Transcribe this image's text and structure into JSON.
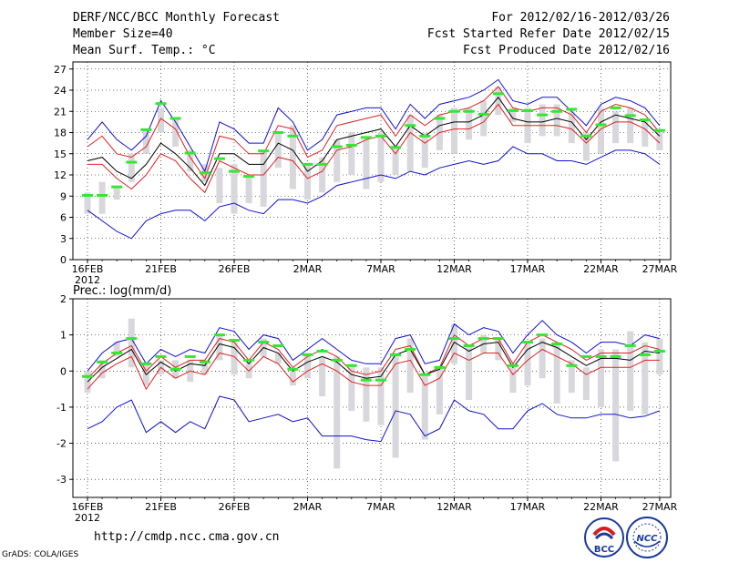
{
  "header": {
    "title": "DERF/NCC/BCC Monthly Forecast",
    "member_size": "Member Size=40",
    "variable": "Mean Surf. Temp.: °C",
    "forecast_period": "For 2012/02/16-2012/03/26",
    "start_date": "Fcst Started Refer Date 2012/02/15",
    "produced_date": "Fcst Produced Date 2012/02/16"
  },
  "footer": {
    "url": "http://cmdp.ncc.cma.gov.cn",
    "grads": "GrADS: COLA/IGES",
    "logo_bcc": "BCC",
    "logo_ncc": "NCC"
  },
  "colors": {
    "ensemble_mean": "#000000",
    "spread_inner": "#e02020",
    "spread_outer": "#1010d0",
    "bars": "#d8d8dc",
    "green": "#33e833"
  },
  "chart_data": [
    {
      "type": "line",
      "title": "Mean Surf. Temp.: °C",
      "ylim": [
        0,
        28
      ],
      "yticks": [
        0,
        3,
        6,
        9,
        12,
        15,
        18,
        21,
        24,
        27
      ],
      "x_ticks": [
        {
          "day": 0,
          "label": "16FEB"
        },
        {
          "day": 5,
          "label": "21FEB"
        },
        {
          "day": 10,
          "label": "26FEB"
        },
        {
          "day": 15,
          "label": "2MAR"
        },
        {
          "day": 20,
          "label": "7MAR"
        },
        {
          "day": 25,
          "label": "12MAR"
        },
        {
          "day": 30,
          "label": "17MAR"
        },
        {
          "day": 35,
          "label": "22MAR"
        },
        {
          "day": 39,
          "label": "27MAR"
        }
      ],
      "x_sublabel": "2012",
      "series": [
        {
          "name": "upper-blue",
          "values": [
            17,
            19.5,
            17,
            15.5,
            17.5,
            22.5,
            19.5,
            16,
            12.5,
            19.5,
            18.5,
            16.5,
            16.5,
            21.5,
            19.5,
            15.5,
            17,
            20.5,
            21,
            21.5,
            21.5,
            18.5,
            22,
            20,
            22,
            22.5,
            23,
            24,
            25.5,
            22.5,
            22,
            23,
            23,
            21,
            19,
            22,
            23,
            22.5,
            21.5,
            19
          ]
        },
        {
          "name": "upper-red",
          "values": [
            16,
            17.5,
            15,
            14.5,
            16,
            20,
            18.5,
            14.5,
            11.5,
            17.5,
            17,
            15,
            15,
            19,
            18.5,
            14.5,
            15.5,
            19,
            19.5,
            20,
            20.5,
            17.5,
            20.5,
            19,
            20.5,
            21,
            21.5,
            22.5,
            24.5,
            21.5,
            21,
            21.5,
            21.5,
            20.5,
            18,
            21,
            22,
            21.5,
            20.5,
            18
          ]
        },
        {
          "name": "ensemble-mean",
          "values": [
            14,
            14.5,
            12.5,
            11.5,
            13.5,
            16.5,
            15,
            13,
            10.5,
            15,
            15,
            13.5,
            13.5,
            16.5,
            15.5,
            12.5,
            14,
            17,
            17.5,
            18,
            18.5,
            16,
            19,
            17.5,
            19,
            19.5,
            19.5,
            20.5,
            23,
            20,
            19.5,
            19.5,
            20,
            19.5,
            17,
            19.5,
            20.5,
            20,
            19.5,
            17.5
          ]
        },
        {
          "name": "lower-red",
          "values": [
            13.5,
            13.5,
            11.5,
            10,
            12,
            15,
            14,
            11.5,
            9.5,
            14,
            13,
            12,
            12,
            14.5,
            14,
            11.5,
            12.5,
            15.5,
            16,
            17,
            17.5,
            15,
            18,
            16.5,
            18,
            18.5,
            18.5,
            19.5,
            22,
            19,
            19,
            19,
            19,
            18.5,
            16.5,
            18.5,
            19.5,
            19.5,
            18.5,
            16.5
          ]
        },
        {
          "name": "lower-blue",
          "values": [
            7,
            5.5,
            4,
            3,
            5.5,
            6.5,
            7,
            7,
            5.5,
            7.5,
            8,
            7,
            6.5,
            8.5,
            8.5,
            8,
            9,
            10.5,
            11,
            11.5,
            12,
            11.5,
            12.5,
            12,
            13,
            13.5,
            14,
            13.5,
            14,
            16,
            15,
            15,
            14,
            14,
            13.5,
            14.5,
            15.5,
            15.5,
            15,
            13.5
          ]
        }
      ],
      "bars": [
        [
          6.5,
          9.5
        ],
        [
          6.5,
          11
        ],
        [
          8.5,
          10.5
        ],
        [
          11,
          15
        ],
        [
          15,
          18.5
        ],
        [
          18,
          21.5
        ],
        [
          16,
          20
        ],
        [
          12.5,
          15.5
        ],
        [
          11,
          13.5
        ],
        [
          8,
          13
        ],
        [
          6.5,
          13.5
        ],
        [
          8,
          12
        ],
        [
          7.5,
          15.5
        ],
        [
          13,
          18
        ],
        [
          10,
          19
        ],
        [
          8.5,
          13.5
        ],
        [
          9.5,
          14.5
        ],
        [
          11,
          17
        ],
        [
          12,
          18
        ],
        [
          10,
          17
        ],
        [
          11,
          18
        ],
        [
          12,
          16
        ],
        [
          12.5,
          20.5
        ],
        [
          13,
          18
        ],
        [
          15.5,
          20.5
        ],
        [
          15,
          21.5
        ],
        [
          17,
          21.5
        ],
        [
          17.5,
          22.5
        ],
        [
          20.5,
          24.5
        ],
        [
          19.5,
          21.5
        ],
        [
          16.5,
          21.5
        ],
        [
          17.5,
          22
        ],
        [
          17.5,
          22
        ],
        [
          16.5,
          21.5
        ],
        [
          14,
          18
        ],
        [
          15,
          21.5
        ],
        [
          16.5,
          21
        ],
        [
          16.5,
          21.5
        ],
        [
          16,
          20
        ],
        [
          15.5,
          18.5
        ]
      ],
      "green_marks": [
        9.1,
        9.1,
        10.3,
        13.8,
        18.4,
        22.1,
        20.0,
        15.1,
        12.3,
        14.3,
        12.5,
        11.8,
        15.4,
        18.0,
        17.5,
        13.5,
        13.5,
        16.0,
        16.2,
        17.3,
        17.5,
        15.9,
        19.0,
        17.5,
        20.0,
        21.0,
        21.0,
        20.6,
        23.5,
        21.1,
        21.1,
        20.5,
        21.0,
        21.3,
        17.5,
        19.1,
        21.5,
        20.4,
        19.8,
        18.3
      ]
    },
    {
      "type": "line",
      "title": "Prec.: log(mm/d)",
      "ylim": [
        -3.5,
        2
      ],
      "yticks": [
        -3,
        -2,
        -1,
        0,
        1,
        2
      ],
      "x_ticks": [
        {
          "day": 0,
          "label": "16FEB"
        },
        {
          "day": 5,
          "label": "21FEB"
        },
        {
          "day": 10,
          "label": "26FEB"
        },
        {
          "day": 15,
          "label": "2MAR"
        },
        {
          "day": 20,
          "label": "7MAR"
        },
        {
          "day": 25,
          "label": "12MAR"
        },
        {
          "day": 30,
          "label": "17MAR"
        },
        {
          "day": 35,
          "label": "22MAR"
        },
        {
          "day": 39,
          "label": "27MAR"
        }
      ],
      "x_sublabel": "2012",
      "series": [
        {
          "name": "upper-blue",
          "values": [
            0,
            0.5,
            0.8,
            0.9,
            0.2,
            0.6,
            0.4,
            0.6,
            0.5,
            1.2,
            1.1,
            0.6,
            1.0,
            0.9,
            0.3,
            0.6,
            0.9,
            0.6,
            0.3,
            0.2,
            0.2,
            0.9,
            1.0,
            0.2,
            0.3,
            1.3,
            1.0,
            1.2,
            1.1,
            0.5,
            1.0,
            1.4,
            1.0,
            0.8,
            0.5,
            0.8,
            0.8,
            0.7,
            1.0,
            0.9
          ]
        },
        {
          "name": "upper-red",
          "values": [
            -0.2,
            0.2,
            0.5,
            0.7,
            0,
            0.4,
            0.1,
            0.3,
            0.3,
            0.9,
            0.8,
            0.3,
            0.8,
            0.6,
            0.1,
            0.4,
            0.6,
            0.4,
            0,
            -0.1,
            0,
            0.6,
            0.7,
            -0.1,
            0.1,
            1.0,
            0.7,
            0.9,
            0.9,
            0.2,
            0.8,
            1.0,
            0.8,
            0.6,
            0.3,
            0.5,
            0.5,
            0.5,
            0.7,
            0.6
          ]
        },
        {
          "name": "ensemble-mean",
          "values": [
            -0.3,
            0.1,
            0.35,
            0.6,
            -0.1,
            0.25,
            0,
            0.2,
            0.15,
            0.75,
            0.65,
            0.2,
            0.65,
            0.5,
            0,
            0.25,
            0.4,
            0.25,
            -0.1,
            -0.2,
            -0.15,
            0.45,
            0.6,
            -0.1,
            0.05,
            0.8,
            0.55,
            0.75,
            0.8,
            0.1,
            0.6,
            0.8,
            0.65,
            0.4,
            0.15,
            0.35,
            0.35,
            0.3,
            0.55,
            0.5
          ]
        },
        {
          "name": "lower-red",
          "values": [
            -0.5,
            -0.05,
            0.2,
            0.4,
            -0.5,
            0.1,
            -0.2,
            0,
            -0.1,
            0.5,
            0.4,
            0,
            0.4,
            0.2,
            -0.3,
            0,
            0.2,
            0,
            -0.3,
            -0.4,
            -0.4,
            0.2,
            0.3,
            -0.4,
            -0.2,
            0.5,
            0.3,
            0.5,
            0.5,
            -0.1,
            0.3,
            0.6,
            0.4,
            0.2,
            -0.1,
            0.1,
            0.1,
            0.1,
            0.3,
            0.3
          ]
        },
        {
          "name": "lower-blue",
          "values": [
            -1.6,
            -1.4,
            -1.0,
            -0.8,
            -1.7,
            -1.4,
            -1.7,
            -1.4,
            -1.6,
            -0.7,
            -0.8,
            -1.4,
            -1.3,
            -1.2,
            -1.4,
            -1.3,
            -1.8,
            -1.8,
            -1.8,
            -1.9,
            -1.95,
            -1.1,
            -1.2,
            -1.8,
            -1.6,
            -0.8,
            -1.1,
            -1.2,
            -1.6,
            -1.6,
            -1.1,
            -0.9,
            -1.2,
            -1.3,
            -1.3,
            -1.2,
            -1.2,
            -1.3,
            -1.25,
            -1.1
          ]
        },
        {
          "name": "green-line-unused",
          "values": []
        }
      ],
      "bars": [
        [
          -0.6,
          0
        ],
        [
          -0.2,
          0.3
        ],
        [
          0.4,
          0.8
        ],
        [
          0.1,
          1.45
        ],
        [
          -0.4,
          0.2
        ],
        [
          -0.1,
          0.3
        ],
        [
          -0.2,
          0.3
        ],
        [
          -0.3,
          0.3
        ],
        [
          -0.1,
          0.3
        ],
        [
          0.3,
          1.0
        ],
        [
          -0.1,
          0.8
        ],
        [
          -0.2,
          0.3
        ],
        [
          0.4,
          0.9
        ],
        [
          0.2,
          0.5
        ],
        [
          -0.4,
          0.1
        ],
        [
          -0.2,
          0.5
        ],
        [
          -0.7,
          0.4
        ],
        [
          -2.7,
          0.4
        ],
        [
          -1.1,
          0.2
        ],
        [
          -1.4,
          0.1
        ],
        [
          -1.5,
          0.1
        ],
        [
          -2.4,
          0.5
        ],
        [
          -0.6,
          0.9
        ],
        [
          -1.9,
          -0.1
        ],
        [
          -1.2,
          0.1
        ],
        [
          0.2,
          1.3
        ],
        [
          -0.8,
          0.7
        ],
        [
          0.5,
          1.0
        ],
        [
          0.3,
          0.9
        ],
        [
          -0.6,
          0.2
        ],
        [
          -0.4,
          0.8
        ],
        [
          -0.2,
          0.9
        ],
        [
          -0.9,
          0.8
        ],
        [
          -0.6,
          0.3
        ],
        [
          -0.8,
          0.1
        ],
        [
          -1.0,
          0.6
        ],
        [
          -2.5,
          0.6
        ],
        [
          -1.1,
          1.1
        ],
        [
          -1.2,
          0.8
        ],
        [
          -0.1,
          0.9
        ]
      ],
      "green_marks": [
        -0.15,
        0.25,
        0.5,
        0.9,
        0.2,
        0.4,
        0.05,
        0.4,
        0.25,
        1.0,
        0.85,
        0.3,
        0.8,
        0.7,
        0.05,
        0.45,
        0.55,
        0.3,
        0.15,
        -0.25,
        -0.25,
        0.45,
        0.6,
        -0.1,
        0.1,
        0.9,
        0.7,
        0.9,
        0.9,
        0.15,
        0.8,
        1.0,
        0.75,
        0.15,
        0.4,
        0.4,
        0.4,
        0.7,
        0.45,
        0.55
      ]
    }
  ]
}
